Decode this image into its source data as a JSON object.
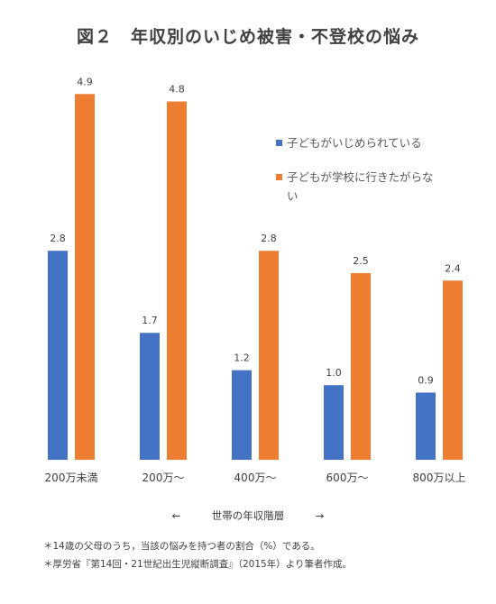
{
  "chart_data": {
    "type": "bar",
    "title": "図２　年収別のいじめ被害・不登校の悩み",
    "categories": [
      "200万未満",
      "200万～",
      "400万～",
      "600万～",
      "800万以上"
    ],
    "series": [
      {
        "name": "子どもがいじめられている",
        "values": [
          2.8,
          1.7,
          1.2,
          1.0,
          0.9
        ],
        "color": "#4472C4"
      },
      {
        "name": "子どもが学校に行きたがらない",
        "values": [
          4.9,
          4.8,
          2.8,
          2.5,
          2.4
        ],
        "color": "#ED7D31"
      }
    ],
    "value_labels": [
      [
        "2.8",
        "1.7",
        "1.2",
        "1.0",
        "0.9"
      ],
      [
        "4.9",
        "4.8",
        "2.8",
        "2.5",
        "2.4"
      ]
    ],
    "xlabel": "世帯の年収階層",
    "ylabel": "",
    "ylim": [
      0,
      5.0
    ],
    "grid": false,
    "legend_position": "top-right"
  },
  "axis_nav": {
    "left_arrow": "←",
    "label": "世帯の年収階層",
    "right_arrow": "→"
  },
  "notes": [
    "＊14歳の父母のうち，当該の悩みを持つ者の割合（%）である。",
    "＊厚労省『第14回・21世紀出生児縦断調査』（2015年）より筆者作成。"
  ]
}
